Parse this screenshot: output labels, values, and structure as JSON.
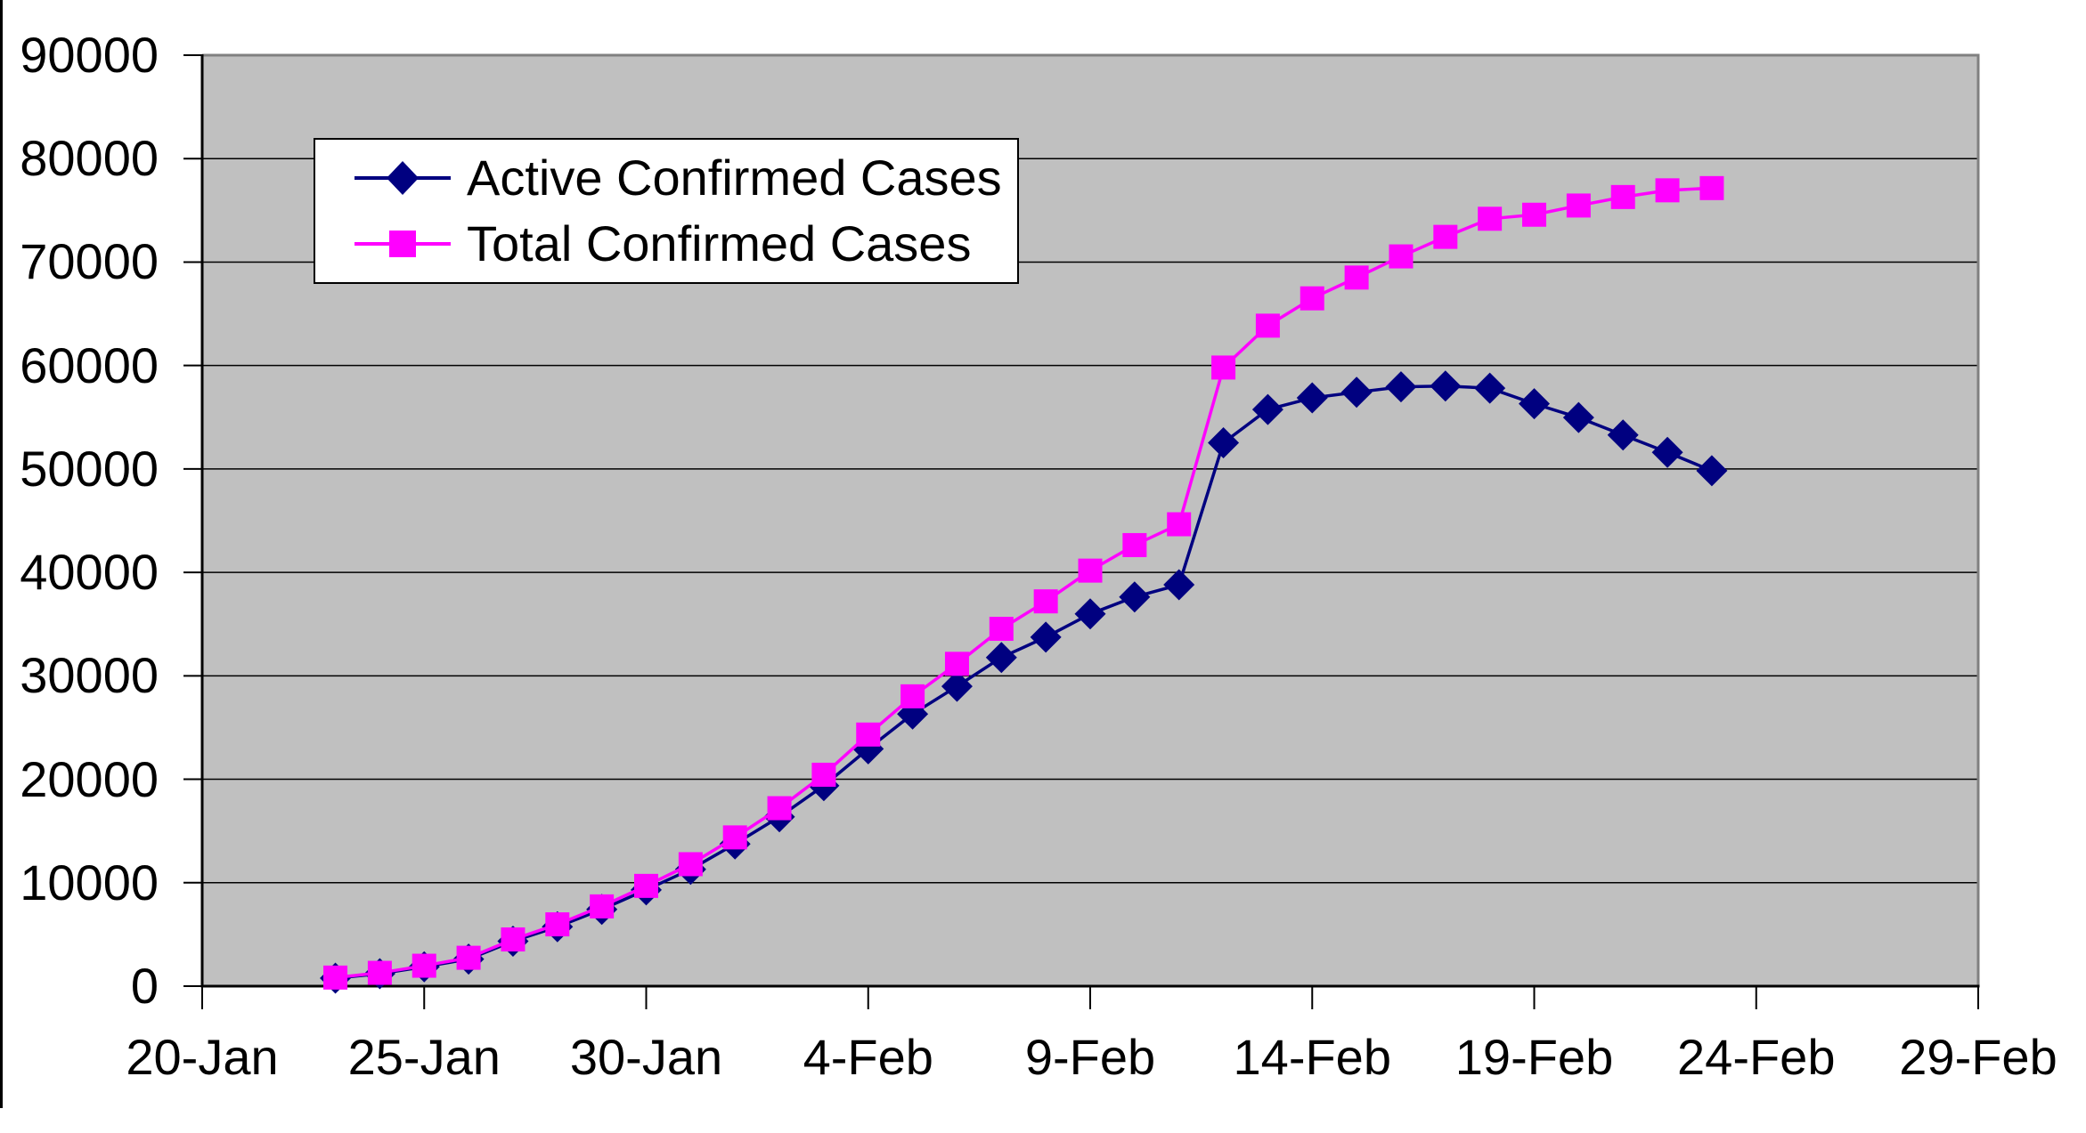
{
  "chart_data": {
    "type": "line",
    "title": "",
    "background_color": "#FFFFFF",
    "plot_background_color": "#C0C0C0",
    "gridline_color": "#000000",
    "plot_border_color": "#808080",
    "axis_line_color": "#000000",
    "grid_on": true,
    "legend_position": "top-left-inside",
    "x_axis": {
      "tick_labels": [
        "20-Jan",
        "25-Jan",
        "30-Jan",
        "4-Feb",
        "9-Feb",
        "14-Feb",
        "19-Feb",
        "24-Feb",
        "29-Feb"
      ],
      "tick_day_offsets": [
        0,
        5,
        10,
        15,
        20,
        25,
        30,
        35,
        40
      ],
      "range_days": [
        0,
        40
      ]
    },
    "y_axis": {
      "tick_labels": [
        "0",
        "10000",
        "20000",
        "30000",
        "40000",
        "50000",
        "60000",
        "70000",
        "80000",
        "90000"
      ],
      "tick_values": [
        0,
        10000,
        20000,
        30000,
        40000,
        50000,
        60000,
        70000,
        80000,
        90000
      ],
      "range": [
        0,
        90000
      ]
    },
    "point_dates": [
      "23-Jan",
      "24-Jan",
      "25-Jan",
      "26-Jan",
      "27-Jan",
      "28-Jan",
      "29-Jan",
      "30-Jan",
      "31-Jan",
      "1-Feb",
      "2-Feb",
      "3-Feb",
      "4-Feb",
      "5-Feb",
      "6-Feb",
      "7-Feb",
      "8-Feb",
      "9-Feb",
      "10-Feb",
      "11-Feb",
      "12-Feb",
      "13-Feb",
      "14-Feb",
      "15-Feb",
      "16-Feb",
      "17-Feb",
      "18-Feb",
      "19-Feb",
      "20-Feb",
      "21-Feb",
      "22-Feb",
      "23-Feb"
    ],
    "point_day_offsets": [
      3,
      4,
      5,
      6,
      7,
      8,
      9,
      10,
      11,
      12,
      13,
      14,
      15,
      16,
      17,
      18,
      19,
      20,
      21,
      22,
      23,
      24,
      25,
      26,
      27,
      28,
      29,
      30,
      31,
      32,
      33,
      34
    ],
    "series": [
      {
        "name": "Active Confirmed Cases",
        "color": "#000080",
        "marker": "diamond",
        "values": [
          771,
          1208,
          1870,
          2613,
          4349,
          5739,
          7417,
          9308,
          11289,
          13748,
          16369,
          19381,
          22942,
          26302,
          28985,
          31774,
          33738,
          35982,
          37626,
          38800,
          52526,
          55748,
          56873,
          57416,
          57934,
          58016,
          57805,
          56303,
          54965,
          53284,
          51606,
          49824
        ]
      },
      {
        "name": "Total Confirmed Cases",
        "color": "#FF00FF",
        "marker": "square",
        "values": [
          830,
          1287,
          1975,
          2744,
          4515,
          5974,
          7711,
          9692,
          11791,
          14380,
          17205,
          20438,
          24324,
          28018,
          31161,
          34546,
          37198,
          40171,
          42638,
          44653,
          59804,
          63851,
          66492,
          68500,
          70548,
          72436,
          74185,
          74576,
          75465,
          76288,
          76936,
          77150
        ]
      }
    ]
  }
}
